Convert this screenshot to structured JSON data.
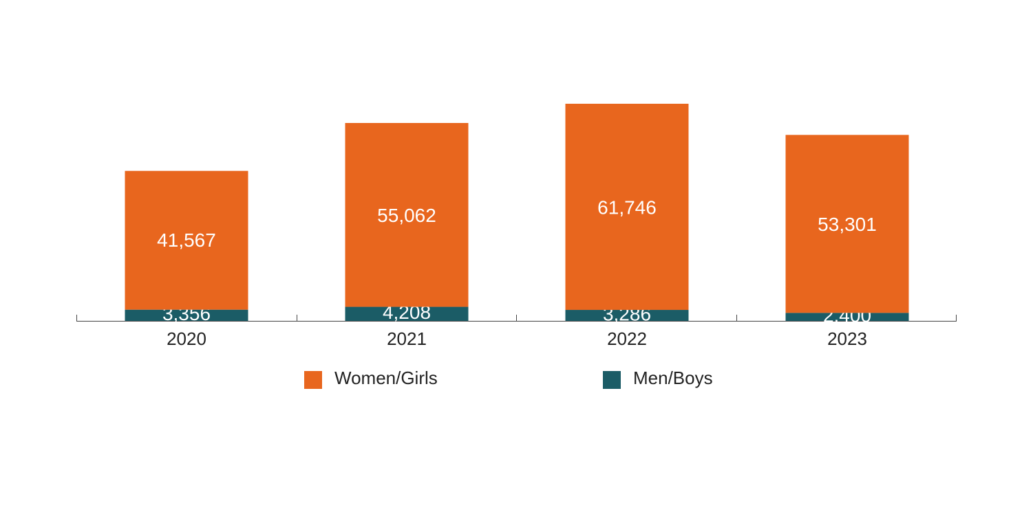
{
  "chart_data": {
    "type": "stacked-bar",
    "categories": [
      "2020",
      "2021",
      "2022",
      "2023"
    ],
    "series": [
      {
        "name": "Women/Girls",
        "color": "#e8661e",
        "values": [
          41567,
          55062,
          61746,
          53301
        ],
        "value_labels": [
          "41,567",
          "55,062",
          "61,746",
          "53,301"
        ]
      },
      {
        "name": "Men/Boys",
        "color": "#1b5c66",
        "values": [
          3356,
          4208,
          3286,
          2400
        ],
        "value_labels": [
          "3,356",
          "4,208",
          "3,286",
          "2,400"
        ]
      }
    ]
  }
}
